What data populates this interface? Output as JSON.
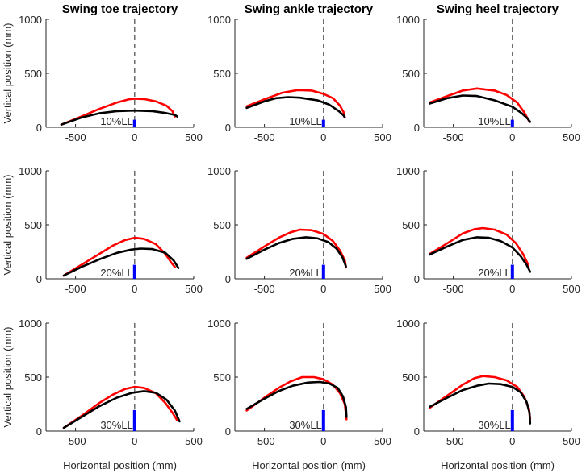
{
  "chart_data": {
    "type": "line",
    "layout": "3x3 grid of small-multiple line plots",
    "column_titles": [
      "Swing toe trajectory",
      "Swing ankle trajectory",
      "Swing heel trajectory"
    ],
    "row_labels": [
      "10%LL",
      "20%LL",
      "30%LL"
    ],
    "xlabel": "Horizontal position (mm)",
    "ylabel": "Vertical position (mm)",
    "xlim": [
      -750,
      500
    ],
    "ylim": [
      0,
      1000
    ],
    "xticks": [
      -500,
      0,
      500
    ],
    "yticks": [
      0,
      500,
      1000
    ],
    "xtick_labels": [
      "-500",
      "0",
      "500"
    ],
    "ytick_labels": [
      "0",
      "500",
      "1000"
    ],
    "reference_line_x": 0,
    "series_colors": {
      "red": "#ff0000",
      "black": "#000000",
      "bar": "#0000ff",
      "reference": "#555555"
    },
    "panels": [
      {
        "row": 0,
        "col": 0,
        "label": "10%LL",
        "bar_height": 70,
        "red": [
          [
            -620,
            25
          ],
          [
            -450,
            100
          ],
          [
            -300,
            170
          ],
          [
            -150,
            230
          ],
          [
            -50,
            260
          ],
          [
            0,
            265
          ],
          [
            80,
            262
          ],
          [
            180,
            240
          ],
          [
            270,
            200
          ],
          [
            320,
            150
          ],
          [
            340,
            100
          ]
        ],
        "black": [
          [
            -620,
            25
          ],
          [
            -450,
            90
          ],
          [
            -300,
            130
          ],
          [
            -150,
            150
          ],
          [
            0,
            155
          ],
          [
            150,
            150
          ],
          [
            250,
            135
          ],
          [
            340,
            115
          ],
          [
            360,
            100
          ]
        ]
      },
      {
        "row": 0,
        "col": 1,
        "label": "10%LL",
        "bar_height": 70,
        "red": [
          [
            -650,
            195
          ],
          [
            -500,
            260
          ],
          [
            -350,
            320
          ],
          [
            -220,
            345
          ],
          [
            -100,
            340
          ],
          [
            0,
            310
          ],
          [
            80,
            270
          ],
          [
            140,
            200
          ],
          [
            170,
            140
          ],
          [
            180,
            90
          ]
        ],
        "black": [
          [
            -650,
            180
          ],
          [
            -500,
            240
          ],
          [
            -400,
            270
          ],
          [
            -300,
            280
          ],
          [
            -200,
            275
          ],
          [
            -50,
            250
          ],
          [
            50,
            210
          ],
          [
            130,
            150
          ],
          [
            170,
            110
          ],
          [
            180,
            90
          ]
        ]
      },
      {
        "row": 0,
        "col": 2,
        "label": "10%LL",
        "bar_height": 70,
        "red": [
          [
            -700,
            230
          ],
          [
            -550,
            290
          ],
          [
            -420,
            340
          ],
          [
            -300,
            360
          ],
          [
            -150,
            340
          ],
          [
            -50,
            300
          ],
          [
            40,
            230
          ],
          [
            100,
            140
          ],
          [
            140,
            60
          ]
        ],
        "black": [
          [
            -700,
            220
          ],
          [
            -550,
            270
          ],
          [
            -420,
            295
          ],
          [
            -300,
            290
          ],
          [
            -150,
            250
          ],
          [
            0,
            190
          ],
          [
            80,
            130
          ],
          [
            130,
            80
          ],
          [
            150,
            50
          ]
        ]
      },
      {
        "row": 1,
        "col": 0,
        "label": "20%LL",
        "bar_height": 130,
        "red": [
          [
            -600,
            30
          ],
          [
            -450,
            130
          ],
          [
            -300,
            230
          ],
          [
            -180,
            310
          ],
          [
            -80,
            360
          ],
          [
            0,
            380
          ],
          [
            80,
            370
          ],
          [
            180,
            320
          ],
          [
            260,
            230
          ],
          [
            310,
            150
          ],
          [
            340,
            110
          ]
        ],
        "black": [
          [
            -600,
            30
          ],
          [
            -450,
            110
          ],
          [
            -300,
            180
          ],
          [
            -150,
            240
          ],
          [
            -30,
            270
          ],
          [
            50,
            280
          ],
          [
            150,
            275
          ],
          [
            260,
            240
          ],
          [
            330,
            170
          ],
          [
            370,
            100
          ]
        ]
      },
      {
        "row": 1,
        "col": 1,
        "label": "20%LL",
        "bar_height": 130,
        "red": [
          [
            -650,
            195
          ],
          [
            -500,
            300
          ],
          [
            -380,
            380
          ],
          [
            -280,
            430
          ],
          [
            -200,
            455
          ],
          [
            -100,
            450
          ],
          [
            0,
            415
          ],
          [
            80,
            350
          ],
          [
            140,
            260
          ],
          [
            180,
            170
          ],
          [
            190,
            105
          ]
        ],
        "black": [
          [
            -650,
            185
          ],
          [
            -500,
            270
          ],
          [
            -380,
            330
          ],
          [
            -260,
            370
          ],
          [
            -150,
            385
          ],
          [
            -50,
            375
          ],
          [
            40,
            340
          ],
          [
            110,
            280
          ],
          [
            160,
            200
          ],
          [
            190,
            115
          ]
        ]
      },
      {
        "row": 1,
        "col": 2,
        "label": "20%LL",
        "bar_height": 130,
        "red": [
          [
            -700,
            230
          ],
          [
            -550,
            330
          ],
          [
            -420,
            420
          ],
          [
            -320,
            460
          ],
          [
            -250,
            470
          ],
          [
            -150,
            455
          ],
          [
            -50,
            410
          ],
          [
            30,
            330
          ],
          [
            90,
            230
          ],
          [
            130,
            140
          ],
          [
            140,
            90
          ]
        ],
        "black": [
          [
            -700,
            225
          ],
          [
            -550,
            300
          ],
          [
            -420,
            360
          ],
          [
            -300,
            385
          ],
          [
            -200,
            380
          ],
          [
            -100,
            350
          ],
          [
            0,
            290
          ],
          [
            70,
            210
          ],
          [
            120,
            130
          ],
          [
            150,
            65
          ]
        ]
      },
      {
        "row": 2,
        "col": 0,
        "label": "30%LL",
        "bar_height": 195,
        "red": [
          [
            -600,
            30
          ],
          [
            -450,
            140
          ],
          [
            -300,
            260
          ],
          [
            -180,
            340
          ],
          [
            -80,
            390
          ],
          [
            0,
            410
          ],
          [
            80,
            400
          ],
          [
            180,
            350
          ],
          [
            260,
            260
          ],
          [
            320,
            170
          ],
          [
            360,
            100
          ]
        ],
        "black": [
          [
            -600,
            30
          ],
          [
            -450,
            130
          ],
          [
            -300,
            230
          ],
          [
            -150,
            310
          ],
          [
            -20,
            355
          ],
          [
            80,
            370
          ],
          [
            180,
            355
          ],
          [
            270,
            290
          ],
          [
            340,
            190
          ],
          [
            380,
            90
          ]
        ]
      },
      {
        "row": 2,
        "col": 1,
        "label": "30%LL",
        "bar_height": 195,
        "red": [
          [
            -650,
            190
          ],
          [
            -500,
            310
          ],
          [
            -380,
            400
          ],
          [
            -280,
            460
          ],
          [
            -180,
            500
          ],
          [
            -80,
            500
          ],
          [
            0,
            480
          ],
          [
            80,
            430
          ],
          [
            140,
            350
          ],
          [
            180,
            250
          ],
          [
            195,
            110
          ]
        ],
        "black": [
          [
            -650,
            205
          ],
          [
            -500,
            300
          ],
          [
            -380,
            370
          ],
          [
            -260,
            420
          ],
          [
            -130,
            450
          ],
          [
            -30,
            455
          ],
          [
            50,
            440
          ],
          [
            120,
            400
          ],
          [
            165,
            320
          ],
          [
            190,
            220
          ],
          [
            195,
            130
          ]
        ]
      },
      {
        "row": 2,
        "col": 2,
        "label": "30%LL",
        "bar_height": 195,
        "red": [
          [
            -700,
            215
          ],
          [
            -550,
            330
          ],
          [
            -420,
            430
          ],
          [
            -320,
            490
          ],
          [
            -250,
            510
          ],
          [
            -150,
            500
          ],
          [
            -50,
            470
          ],
          [
            40,
            410
          ],
          [
            100,
            320
          ],
          [
            140,
            210
          ],
          [
            150,
            110
          ]
        ],
        "black": [
          [
            -700,
            225
          ],
          [
            -550,
            310
          ],
          [
            -420,
            380
          ],
          [
            -300,
            420
          ],
          [
            -200,
            440
          ],
          [
            -100,
            435
          ],
          [
            0,
            410
          ],
          [
            70,
            360
          ],
          [
            120,
            270
          ],
          [
            145,
            170
          ],
          [
            150,
            70
          ]
        ]
      }
    ]
  }
}
